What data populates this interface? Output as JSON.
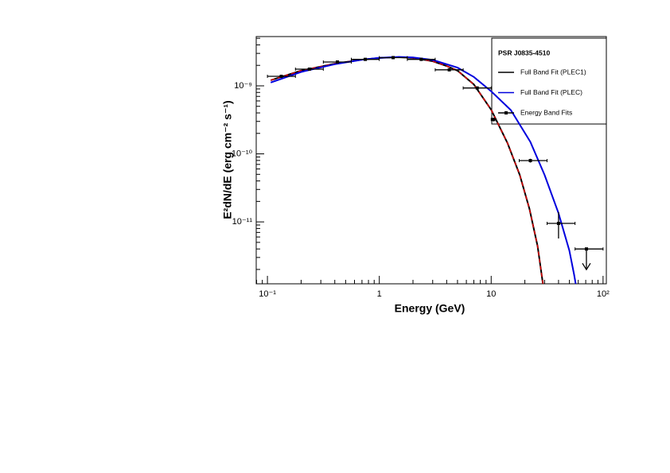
{
  "chart_data": {
    "type": "line",
    "x_label": "Energy (GeV)",
    "y_label": "E²dN/dE (erg cm⁻² s⁻¹)",
    "legend_title": "PSR J0835-4510",
    "x_log": true,
    "y_log": true,
    "xlim": [
      0.0794,
      107
    ],
    "ylim": [
      1.23e-12,
      5.3e-09
    ],
    "xticks": [
      {
        "value": 0.1,
        "label": "10⁻¹"
      },
      1,
      10,
      {
        "value": 100,
        "label": "10²"
      }
    ],
    "yticks": [
      {
        "value": 1e-11,
        "label": "10⁻¹¹"
      },
      {
        "value": 1e-10,
        "label": "10⁻¹⁰"
      },
      {
        "value": 1e-09,
        "label": "10⁻⁹"
      }
    ],
    "series": [
      {
        "name": "Full Band Fit (PLEC1)",
        "type": "line",
        "color": "#000000",
        "overlay_color": "#dd0000",
        "x": [
          0.107,
          0.2,
          0.4,
          0.7,
          1.0,
          1.5,
          2.0,
          3.0,
          4.0,
          5.0,
          7.0,
          10,
          14,
          18,
          22,
          26,
          29
        ],
        "values": [
          1.21e-09,
          1.67e-09,
          2.12e-09,
          2.43e-09,
          2.57e-09,
          2.64e-09,
          2.57e-09,
          2.3e-09,
          1.96e-09,
          1.67e-09,
          1.05e-09,
          4.45e-10,
          1.44e-10,
          4.9e-11,
          1.55e-11,
          4.4e-12,
          1.23e-12
        ]
      },
      {
        "name": "Full Band Fit (PLEC)",
        "type": "line",
        "color": "#0000dd",
        "x": [
          0.107,
          0.2,
          0.4,
          0.7,
          1.0,
          1.5,
          2.0,
          3.0,
          5.0,
          7.0,
          10,
          15,
          22.4,
          30,
          40,
          50,
          55,
          57
        ],
        "values": [
          1.12e-09,
          1.6e-09,
          2.08e-09,
          2.42e-09,
          2.58e-09,
          2.66e-09,
          2.62e-09,
          2.4e-09,
          1.85e-09,
          1.35e-09,
          8.3e-10,
          4.4e-10,
          1.5e-10,
          4.9e-11,
          1.34e-11,
          3.8e-12,
          1.7e-12,
          1.23e-12
        ]
      },
      {
        "name": "Energy Band Fits",
        "type": "errorbar",
        "color": "#000000",
        "x": [
          0.133,
          0.237,
          0.422,
          0.75,
          1.33,
          2.37,
          4.22,
          7.5,
          10.5,
          22.4,
          40,
          71
        ],
        "x_low": [
          0.1,
          0.178,
          0.316,
          0.562,
          1.0,
          1.78,
          3.16,
          5.62,
          10,
          17.8,
          31.6,
          56.2
        ],
        "x_high": [
          0.178,
          0.316,
          0.562,
          1.0,
          1.78,
          3.16,
          5.62,
          10,
          11,
          31.6,
          56.2,
          100
        ],
        "values": [
          1.38e-09,
          1.76e-09,
          2.24e-09,
          2.45e-09,
          2.6e-09,
          2.45e-09,
          1.72e-09,
          9.3e-10,
          3.2e-10,
          7.96e-11,
          9.5e-12,
          4e-12
        ],
        "y_err_low": [
          4e-11,
          5e-11,
          6e-11,
          6e-11,
          6e-11,
          6e-11,
          5e-11,
          4e-11,
          2e-11,
          5e-12,
          3.8e-12,
          0
        ],
        "y_err_high": [
          4e-11,
          5e-11,
          6e-11,
          6e-11,
          6e-11,
          6e-11,
          5e-11,
          4e-11,
          2e-11,
          5e-12,
          4.5e-12,
          0
        ],
        "upper_limit": [
          false,
          false,
          false,
          false,
          false,
          false,
          false,
          false,
          false,
          false,
          false,
          true
        ]
      }
    ]
  }
}
